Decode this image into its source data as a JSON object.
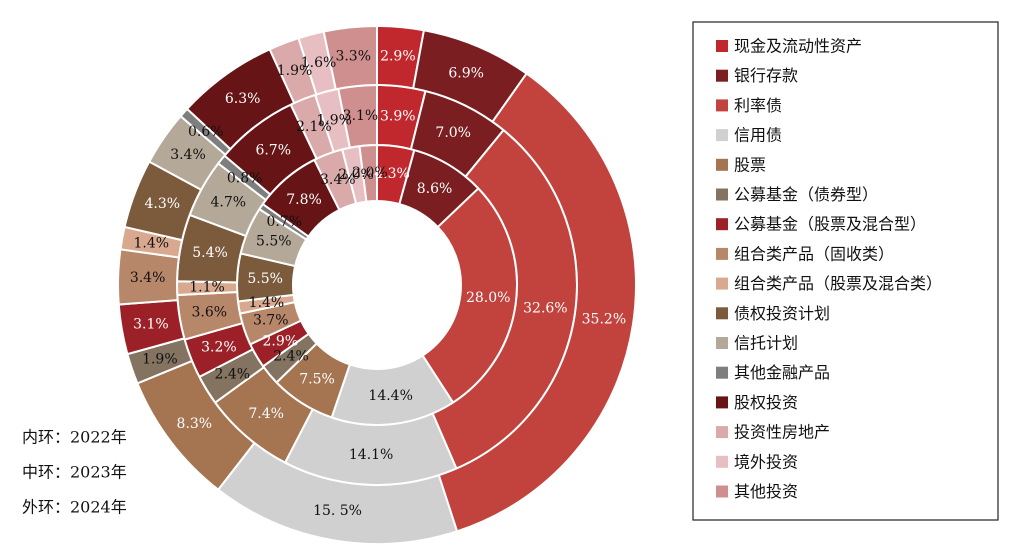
{
  "chart_data": {
    "type": "pie",
    "subtype": "multi-ring-donut",
    "rings": [
      {
        "id": "inner",
        "caption": "内环：2022年",
        "values": [
          4.3,
          8.6,
          28.0,
          14.4,
          7.5,
          2.4,
          2.9,
          3.7,
          1.4,
          5.5,
          5.5,
          0.7,
          7.8,
          3.4,
          2.0,
          2.0
        ],
        "labels": [
          "4.3%",
          "8.6%",
          "28.0%",
          "14.4%",
          "7.5%",
          "2.4%",
          "2.9%",
          "3.7%",
          "1.4%",
          "5.5%",
          "5.5%",
          "0.7%",
          "7.8%",
          "3.4%",
          "2.0%",
          "2.0%"
        ]
      },
      {
        "id": "middle",
        "caption": "中环：2023年",
        "values": [
          3.9,
          7.0,
          32.6,
          14.1,
          7.4,
          2.4,
          3.2,
          3.6,
          1.1,
          5.4,
          4.7,
          0.8,
          6.7,
          2.1,
          1.9,
          3.1
        ],
        "labels": [
          "3.9%",
          "7.0%",
          "32.6%",
          "14.1%",
          "7.4%",
          "2.4%",
          "3.2%",
          "3.6%",
          "1.1%",
          "5.4%",
          "4.7%",
          "0.8%",
          "6.7%",
          "2.1%",
          "1.9%",
          "3.1%"
        ]
      },
      {
        "id": "outer",
        "caption": "外环：2024年",
        "values": [
          2.9,
          6.9,
          35.2,
          15.5,
          8.3,
          1.9,
          3.1,
          3.4,
          1.4,
          4.3,
          3.4,
          0.6,
          6.3,
          1.9,
          1.6,
          3.3
        ],
        "labels": [
          "2.9%",
          "6.9%",
          "35.2%",
          "15. 5%",
          "8.3%",
          "1.9%",
          "3.1%",
          "3.4%",
          "1.4%",
          "4.3%",
          "3.4%",
          "0.6%",
          "6.3%",
          "1.9%",
          "1.6%",
          "3.3%"
        ]
      }
    ],
    "categories": [
      "现金及流动性资产",
      "银行存款",
      "利率债",
      "信用债",
      "股票",
      "公募基金（债券型）",
      "公募基金（股票及混合型）",
      "组合类产品（固收类）",
      "组合类产品（股票及混合类）",
      "债权投资计划",
      "信托计划",
      "其他金融产品",
      "股权投资",
      "投资性房地产",
      "境外投资",
      "其他投资"
    ],
    "colors": [
      "#C0282D",
      "#7B1E22",
      "#C2423D",
      "#D0D0D0",
      "#A57451",
      "#837360",
      "#9C2027",
      "#B7876A",
      "#D9A98F",
      "#7C5A3C",
      "#B4A898",
      "#7E7E7E",
      "#661416",
      "#D9AAA9",
      "#E7BFC2",
      "#CF8F8F"
    ],
    "label_colors": [
      "#ffffff",
      "#ffffff",
      "#ffffff",
      "#111111",
      "#ffffff",
      "#111111",
      "#ffffff",
      "#111111",
      "#111111",
      "#ffffff",
      "#111111",
      "#111111",
      "#ffffff",
      "#111111",
      "#111111",
      "#111111"
    ],
    "legend_position": "right",
    "direction": "clockwise from top"
  }
}
